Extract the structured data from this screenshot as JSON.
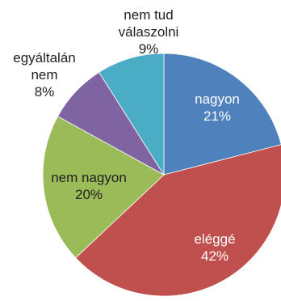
{
  "chart_data": {
    "type": "pie",
    "title": "",
    "slices": [
      {
        "label": "nagyon",
        "value": 21,
        "value_label": "21%",
        "color": "#4f81bd",
        "label_color": "#ffffff"
      },
      {
        "label": "eléggé",
        "value": 42,
        "value_label": "42%",
        "color": "#c0504d",
        "label_color": "#ffffff"
      },
      {
        "label": "nem nagyon",
        "value": 20,
        "value_label": "20%",
        "color": "#9bbb59",
        "label_color": "#1f1f1f"
      },
      {
        "label": "egyáltalán nem",
        "value": 8,
        "value_label": "8%",
        "color": "#8064a2",
        "label_color": "#1f1f1f"
      },
      {
        "label": "nem tud válaszolni",
        "value": 9,
        "value_label": "9%",
        "color": "#4bacc6",
        "label_color": "#1f1f1f"
      }
    ],
    "start_angle": "12 o'clock",
    "direction": "clockwise",
    "legend": "none"
  }
}
